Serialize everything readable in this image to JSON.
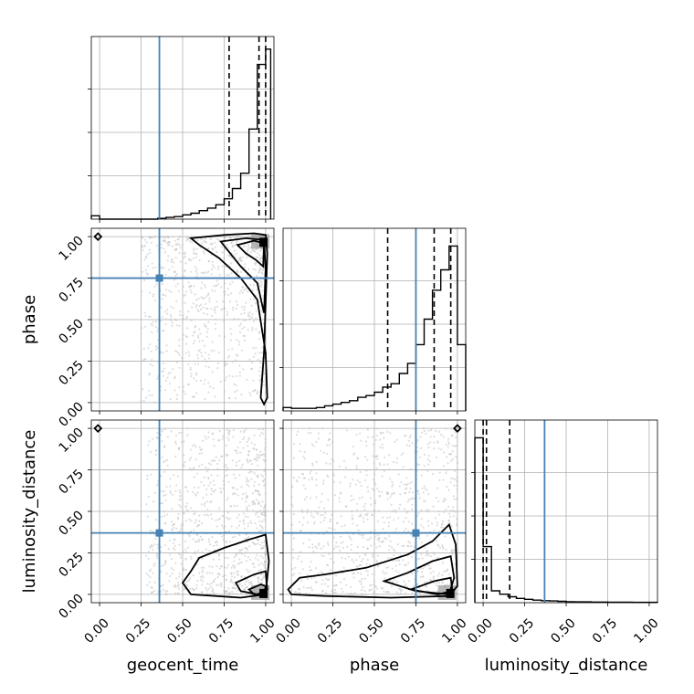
{
  "chart_data": {
    "type": "scatter",
    "variables": [
      "geocent_time",
      "phase",
      "luminosity_distance"
    ],
    "tick_labels": [
      "0.00",
      "0.25",
      "0.50",
      "0.75",
      "1.00"
    ],
    "axis_range": [
      -0.05,
      1.05
    ],
    "truth": {
      "geocent_time": 0.36,
      "phase": 0.75,
      "luminosity_distance": 0.37
    },
    "quantiles": {
      "geocent_time": [
        0.78,
        0.96,
        1.0
      ],
      "phase": [
        0.58,
        0.86,
        0.96
      ],
      "luminosity_distance": [
        0.0,
        0.02,
        0.16
      ]
    },
    "grid": true,
    "marginals": {
      "geocent_time": {
        "edges": [
          -0.05,
          0.0,
          0.05,
          0.1,
          0.15,
          0.2,
          0.25,
          0.3,
          0.35,
          0.4,
          0.45,
          0.5,
          0.55,
          0.6,
          0.65,
          0.7,
          0.75,
          0.8,
          0.85,
          0.9,
          0.95,
          1.0,
          1.03
        ],
        "counts": [
          0.02,
          0.0,
          0.0,
          0.0,
          0.0,
          0.0,
          0.0,
          0.0,
          0.005,
          0.01,
          0.015,
          0.025,
          0.035,
          0.05,
          0.065,
          0.085,
          0.12,
          0.18,
          0.27,
          0.53,
          0.91,
          1.0
        ]
      },
      "phase": {
        "edges": [
          -0.05,
          0.0,
          0.05,
          0.1,
          0.15,
          0.2,
          0.25,
          0.3,
          0.35,
          0.4,
          0.45,
          0.5,
          0.55,
          0.6,
          0.65,
          0.7,
          0.75,
          0.8,
          0.85,
          0.9,
          0.95,
          1.0,
          1.05
        ],
        "counts": [
          0.02,
          0.015,
          0.015,
          0.015,
          0.02,
          0.03,
          0.04,
          0.05,
          0.06,
          0.08,
          0.09,
          0.11,
          0.14,
          0.16,
          0.22,
          0.28,
          0.39,
          0.54,
          0.71,
          0.83,
          0.97,
          0.39
        ]
      },
      "luminosity_distance": {
        "edges": [
          -0.05,
          0.0,
          0.05,
          0.1,
          0.15,
          0.2,
          0.25,
          0.3,
          0.35,
          0.4,
          0.45,
          0.5,
          0.55,
          0.6,
          0.65,
          0.7,
          0.75,
          0.8,
          0.85,
          0.9,
          0.95,
          1.0,
          1.05
        ],
        "counts": [
          0.97,
          0.33,
          0.07,
          0.05,
          0.035,
          0.025,
          0.02,
          0.015,
          0.012,
          0.01,
          0.008,
          0.006,
          0.005,
          0.005,
          0.004,
          0.004,
          0.003,
          0.003,
          0.003,
          0.002,
          0.002,
          0.002
        ]
      }
    },
    "joint": {
      "phase_vs_geocent_time": {
        "contours": [
          [
            [
              0.55,
              0.99
            ],
            [
              0.75,
              1.01
            ],
            [
              0.93,
              1.02
            ],
            [
              1.0,
              1.01
            ],
            [
              1.01,
              0.9
            ],
            [
              1.0,
              0.6
            ],
            [
              0.99,
              0.3
            ],
            [
              0.97,
              0.03
            ],
            [
              0.99,
              -0.01
            ],
            [
              1.01,
              0.03
            ],
            [
              1.0,
              0.3
            ],
            [
              0.95,
              0.62
            ],
            [
              0.85,
              0.75
            ],
            [
              0.72,
              0.87
            ],
            [
              0.6,
              0.95
            ]
          ],
          [
            [
              0.73,
              0.97
            ],
            [
              0.88,
              0.99
            ],
            [
              0.99,
              0.98
            ],
            [
              1.0,
              0.8
            ],
            [
              0.99,
              0.54
            ],
            [
              0.95,
              0.72
            ],
            [
              0.85,
              0.82
            ]
          ],
          [
            [
              0.83,
              0.95
            ],
            [
              0.93,
              0.975
            ],
            [
              0.99,
              0.96
            ],
            [
              0.985,
              0.82
            ],
            [
              0.94,
              0.86
            ],
            [
              0.88,
              0.9
            ]
          ],
          [
            [
              -0.03,
              1.0
            ],
            [
              -0.01,
              1.02
            ],
            [
              0.01,
              1.0
            ],
            [
              -0.01,
              0.98
            ]
          ]
        ],
        "density_peak": [
          0.99,
          0.96
        ]
      },
      "luminosity_distance_vs_geocent_time": {
        "contours": [
          [
            [
              0.5,
              0.07
            ],
            [
              0.55,
              0.14
            ],
            [
              0.6,
              0.22
            ],
            [
              0.75,
              0.28
            ],
            [
              0.9,
              0.33
            ],
            [
              1.0,
              0.36
            ],
            [
              1.02,
              0.2
            ],
            [
              1.0,
              0.0
            ],
            [
              0.85,
              -0.02
            ],
            [
              0.55,
              0.0
            ]
          ],
          [
            [
              0.82,
              0.07
            ],
            [
              0.93,
              0.12
            ],
            [
              1.0,
              0.14
            ],
            [
              1.01,
              0.03
            ],
            [
              0.95,
              0.0
            ],
            [
              0.85,
              0.02
            ]
          ],
          [
            [
              0.9,
              0.03
            ],
            [
              0.97,
              0.06
            ],
            [
              1.0,
              0.05
            ],
            [
              0.99,
              0.0
            ],
            [
              0.93,
              0.0
            ]
          ],
          [
            [
              -0.03,
              1.0
            ],
            [
              -0.01,
              1.02
            ],
            [
              0.01,
              1.0
            ],
            [
              -0.01,
              0.98
            ]
          ]
        ],
        "density_peak": [
          0.99,
          0.0
        ]
      },
      "luminosity_distance_vs_phase": {
        "contours": [
          [
            [
              -0.02,
              0.03
            ],
            [
              0.05,
              0.1
            ],
            [
              0.2,
              0.12
            ],
            [
              0.45,
              0.16
            ],
            [
              0.7,
              0.24
            ],
            [
              0.85,
              0.32
            ],
            [
              0.95,
              0.42
            ],
            [
              0.99,
              0.3
            ],
            [
              1.0,
              0.05
            ],
            [
              0.95,
              -0.01
            ],
            [
              0.6,
              -0.02
            ],
            [
              0.2,
              -0.01
            ],
            [
              0.0,
              0.0
            ]
          ],
          [
            [
              0.56,
              0.08
            ],
            [
              0.7,
              0.13
            ],
            [
              0.85,
              0.2
            ],
            [
              0.96,
              0.23
            ],
            [
              0.98,
              0.1
            ],
            [
              0.95,
              0.0
            ],
            [
              0.75,
              0.02
            ]
          ],
          [
            [
              0.72,
              0.03
            ],
            [
              0.86,
              0.08
            ],
            [
              0.96,
              0.1
            ],
            [
              0.97,
              0.02
            ],
            [
              0.88,
              0.0
            ]
          ],
          [
            [
              0.98,
              1.0
            ],
            [
              1.0,
              1.02
            ],
            [
              1.02,
              1.0
            ],
            [
              1.0,
              0.98
            ]
          ]
        ],
        "density_peak": [
          0.96,
          0.0
        ]
      }
    }
  }
}
